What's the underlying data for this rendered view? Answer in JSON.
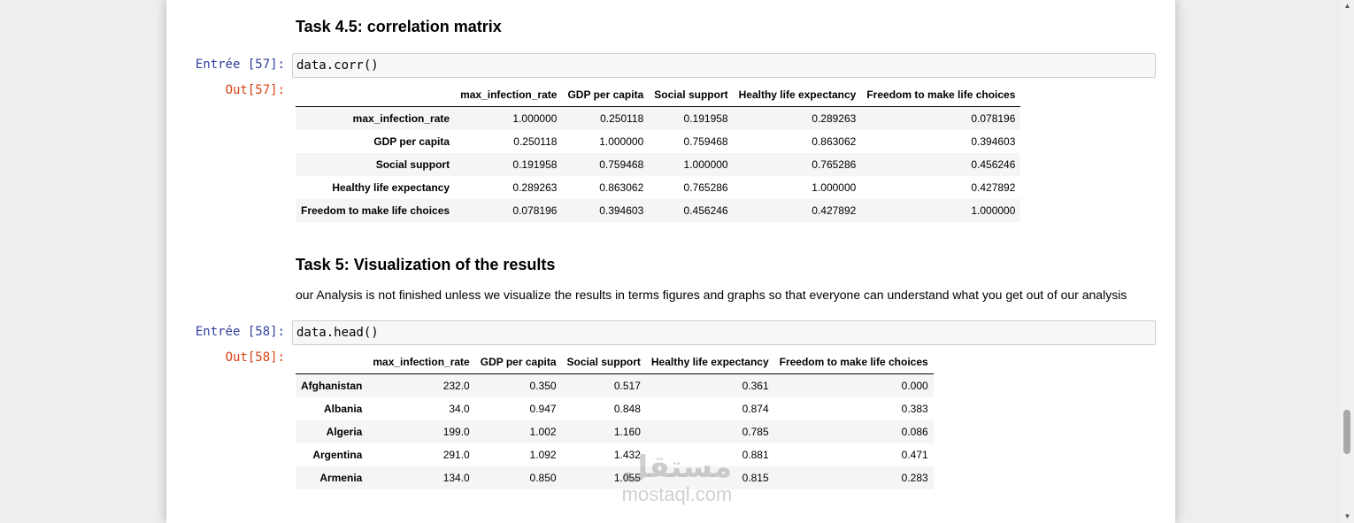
{
  "notebook": {
    "task45_heading": "Task 4.5: correlation matrix",
    "cell57": {
      "in_prompt": "Entrée [57]:",
      "code": "data.corr()",
      "out_prompt": "Out[57]:",
      "columns": [
        "max_infection_rate",
        "GDP per capita",
        "Social support",
        "Healthy life expectancy",
        "Freedom to make life choices"
      ],
      "rows": [
        {
          "index": "max_infection_rate",
          "values": [
            "1.000000",
            "0.250118",
            "0.191958",
            "0.289263",
            "0.078196"
          ]
        },
        {
          "index": "GDP per capita",
          "values": [
            "0.250118",
            "1.000000",
            "0.759468",
            "0.863062",
            "0.394603"
          ]
        },
        {
          "index": "Social support",
          "values": [
            "0.191958",
            "0.759468",
            "1.000000",
            "0.765286",
            "0.456246"
          ]
        },
        {
          "index": "Healthy life expectancy",
          "values": [
            "0.289263",
            "0.863062",
            "0.765286",
            "1.000000",
            "0.427892"
          ]
        },
        {
          "index": "Freedom to make life choices",
          "values": [
            "0.078196",
            "0.394603",
            "0.456246",
            "0.427892",
            "1.000000"
          ]
        }
      ]
    },
    "task5_heading": "Task 5: Visualization of the results",
    "task5_text": "our Analysis is not finished unless we visualize the results in terms figures and graphs so that everyone can understand what you get out of our analysis",
    "cell58": {
      "in_prompt": "Entrée [58]:",
      "code": "data.head()",
      "out_prompt": "Out[58]:",
      "columns": [
        "max_infection_rate",
        "GDP per capita",
        "Social support",
        "Healthy life expectancy",
        "Freedom to make life choices"
      ],
      "rows": [
        {
          "index": "Afghanistan",
          "values": [
            "232.0",
            "0.350",
            "0.517",
            "0.361",
            "0.000"
          ]
        },
        {
          "index": "Albania",
          "values": [
            "34.0",
            "0.947",
            "0.848",
            "0.874",
            "0.383"
          ]
        },
        {
          "index": "Algeria",
          "values": [
            "199.0",
            "1.002",
            "1.160",
            "0.785",
            "0.086"
          ]
        },
        {
          "index": "Argentina",
          "values": [
            "291.0",
            "1.092",
            "1.432",
            "0.881",
            "0.471"
          ]
        },
        {
          "index": "Armenia",
          "values": [
            "134.0",
            "0.850",
            "1.055",
            "0.815",
            "0.283"
          ]
        }
      ]
    }
  },
  "watermark": {
    "logo_text": "مستقل",
    "url": "mostaql.com"
  },
  "scrollbar": {
    "up_icon": "▲",
    "down_icon": "▼"
  }
}
